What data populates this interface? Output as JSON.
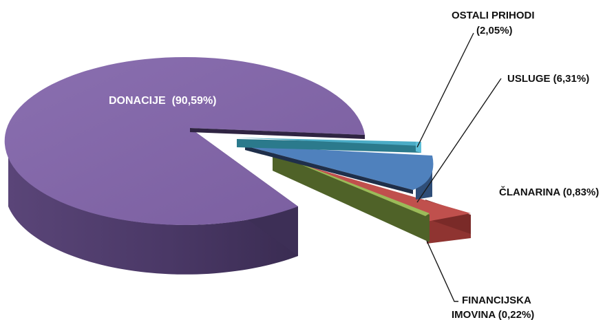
{
  "chart_data": {
    "type": "pie",
    "style": "3d-exploded",
    "slices": [
      {
        "name": "DONACIJE",
        "percent": 90.59,
        "label_pct": "(90,59%)",
        "color": "#8064A2"
      },
      {
        "name": "OSTALI PRIHODI",
        "percent": 2.05,
        "label_pct": "(2,05%)",
        "color": "#4BACC6"
      },
      {
        "name": "USLUGE",
        "percent": 6.31,
        "label_pct": "(6,31%)",
        "color": "#4F81BD"
      },
      {
        "name": "ČLANARINA",
        "percent": 0.83,
        "label_pct": "(0,83%)",
        "color": "#C0504D"
      },
      {
        "name": "FINANCIJSKA IMOVINA",
        "percent": 0.22,
        "label_pct": "(0,22%)",
        "color": "#9BBB59"
      }
    ],
    "labels": {
      "donacije": "DONACIJE  (90,59%)",
      "ostali_line1": "OSTALI PRIHODI",
      "ostali_line2": "(2,05%)",
      "usluge": "USLUGE (6,31%)",
      "clanarina": "ČLANARINA (0,83%)",
      "fin_line1": "FINANCIJSKA",
      "fin_line2": "IMOVINA (0,22%)"
    },
    "legend": "none"
  }
}
